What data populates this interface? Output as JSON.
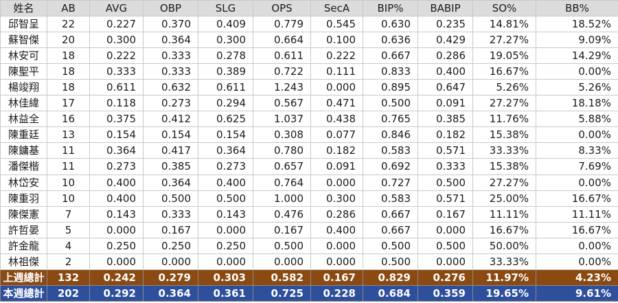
{
  "columns": [
    "姓名",
    "AB",
    "AVG",
    "OBP",
    "SLG",
    "OPS",
    "SecA",
    "BIP%",
    "BABIP",
    "SO%",
    "BB%"
  ],
  "rows": [
    [
      "邱智呈",
      "22",
      "0.227",
      "0.370",
      "0.409",
      "0.779",
      "0.545",
      "0.630",
      "0.235",
      "14.81%",
      "18.52%"
    ],
    [
      "蘇智傑",
      "20",
      "0.300",
      "0.364",
      "0.300",
      "0.664",
      "0.100",
      "0.636",
      "0.429",
      "27.27%",
      "9.09%"
    ],
    [
      "林安可",
      "18",
      "0.222",
      "0.333",
      "0.278",
      "0.611",
      "0.222",
      "0.667",
      "0.286",
      "19.05%",
      "14.29%"
    ],
    [
      "陳聖平",
      "18",
      "0.333",
      "0.333",
      "0.389",
      "0.722",
      "0.111",
      "0.833",
      "0.400",
      "16.67%",
      "0.00%"
    ],
    [
      "楊竣翔",
      "18",
      "0.611",
      "0.632",
      "0.611",
      "1.243",
      "0.000",
      "0.895",
      "0.647",
      "5.26%",
      "5.26%"
    ],
    [
      "林佳緯",
      "17",
      "0.118",
      "0.273",
      "0.294",
      "0.567",
      "0.471",
      "0.500",
      "0.091",
      "27.27%",
      "18.18%"
    ],
    [
      "林益全",
      "16",
      "0.375",
      "0.412",
      "0.625",
      "1.037",
      "0.438",
      "0.765",
      "0.385",
      "11.76%",
      "5.88%"
    ],
    [
      "陳重廷",
      "13",
      "0.154",
      "0.154",
      "0.154",
      "0.308",
      "0.077",
      "0.846",
      "0.182",
      "15.38%",
      "0.00%"
    ],
    [
      "陳鏞基",
      "11",
      "0.364",
      "0.417",
      "0.364",
      "0.780",
      "0.182",
      "0.583",
      "0.571",
      "33.33%",
      "8.33%"
    ],
    [
      "潘傑楷",
      "11",
      "0.273",
      "0.385",
      "0.273",
      "0.657",
      "0.091",
      "0.692",
      "0.333",
      "15.38%",
      "7.69%"
    ],
    [
      "林岱安",
      "10",
      "0.400",
      "0.364",
      "0.400",
      "0.764",
      "0.000",
      "0.727",
      "0.500",
      "27.27%",
      "0.00%"
    ],
    [
      "陳重羽",
      "10",
      "0.400",
      "0.500",
      "0.500",
      "1.000",
      "0.300",
      "0.583",
      "0.571",
      "25.00%",
      "16.67%"
    ],
    [
      "陳傑憲",
      "7",
      "0.143",
      "0.333",
      "0.143",
      "0.476",
      "0.286",
      "0.667",
      "0.167",
      "11.11%",
      "11.11%"
    ],
    [
      "許哲晏",
      "5",
      "0.000",
      "0.167",
      "0.000",
      "0.167",
      "0.400",
      "0.667",
      "0.000",
      "16.67%",
      "16.67%"
    ],
    [
      "許金龍",
      "4",
      "0.250",
      "0.250",
      "0.250",
      "0.500",
      "0.000",
      "0.500",
      "0.500",
      "50.00%",
      "0.00%"
    ],
    [
      "林祖傑",
      "2",
      "0.000",
      "0.000",
      "0.000",
      "0.000",
      "0.000",
      "0.500",
      "0.000",
      "33.33%",
      "0.00%"
    ]
  ],
  "summary": [
    [
      "上週總計",
      "132",
      "0.242",
      "0.279",
      "0.303",
      "0.582",
      "0.167",
      "0.829",
      "0.276",
      "11.97%",
      "4.23%"
    ],
    [
      "本週總計",
      "202",
      "0.292",
      "0.364",
      "0.361",
      "0.725",
      "0.228",
      "0.684",
      "0.359",
      "19.65%",
      "9.61%"
    ]
  ],
  "colors": {
    "header_bg": "#dcdcdc",
    "prev_week_bg": "#8b4a12",
    "this_week_bg": "#2e4f9c",
    "summary_text": "#ffffff"
  }
}
